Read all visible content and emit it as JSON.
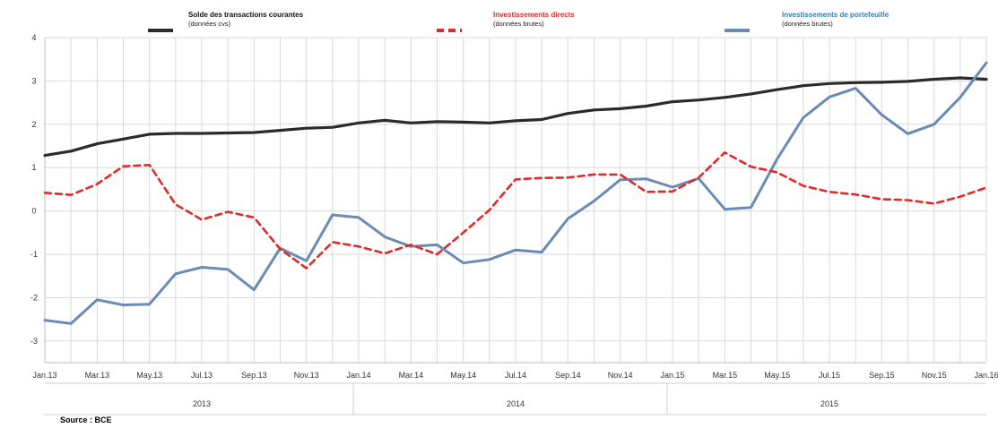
{
  "chart_data": {
    "type": "line",
    "source": "Source : BCE",
    "x": [
      "Jan.13",
      "Feb.13",
      "Mar.13",
      "Apr.13",
      "May.13",
      "Jun.13",
      "Jul.13",
      "Aug.13",
      "Sep.13",
      "Oct.13",
      "Nov.13",
      "Dec.13",
      "Jan.14",
      "Feb.14",
      "Mar.14",
      "Apr.14",
      "May.14",
      "Jun.14",
      "Jul.14",
      "Aug.14",
      "Sep.14",
      "Oct.14",
      "Nov.14",
      "Dec.14",
      "Jan.15",
      "Feb.15",
      "Mar.15",
      "Apr.15",
      "May.15",
      "Jun.15",
      "Jul.15",
      "Aug.15",
      "Sep.15",
      "Oct.15",
      "Nov.15",
      "Dec.15",
      "Jan.16"
    ],
    "tick_labels": [
      "Jan.13",
      "Mar.13",
      "May.13",
      "Jul.13",
      "Sep.13",
      "Nov.13",
      "Jan.14",
      "Mar.14",
      "May.14",
      "Jul.14",
      "Sep.14",
      "Nov.14",
      "Jan.15",
      "Mar.15",
      "May.15",
      "Jul.15",
      "Sep.15",
      "Nov.15",
      "Jan.16"
    ],
    "years": [
      "2013",
      "2014",
      "2015"
    ],
    "ylim": [
      -3.5,
      4
    ],
    "yticks": [
      -3,
      -2,
      -1,
      0,
      1,
      2,
      3,
      4
    ],
    "series": [
      {
        "name": "Solde des transactions courantes",
        "note": "(données cvs)",
        "color": "#2b2b2b",
        "style": "solid",
        "values": [
          1.28,
          1.38,
          1.55,
          1.66,
          1.77,
          1.79,
          1.79,
          1.8,
          1.81,
          1.86,
          1.91,
          1.93,
          2.03,
          2.09,
          2.03,
          2.06,
          2.05,
          2.03,
          2.08,
          2.11,
          2.25,
          2.33,
          2.36,
          2.42,
          2.52,
          2.56,
          2.62,
          2.7,
          2.8,
          2.89,
          2.94,
          2.96,
          2.97,
          2.99,
          3.04,
          3.07,
          3.04
        ]
      },
      {
        "name": "Investissements directs",
        "note": "(données brutes)",
        "color": "#e02a2a",
        "style": "dashed",
        "values": [
          0.42,
          0.37,
          0.62,
          1.03,
          1.06,
          0.15,
          -0.2,
          -0.02,
          -0.15,
          -0.88,
          -1.32,
          -0.72,
          -0.82,
          -0.98,
          -0.78,
          -1.0,
          -0.5,
          0.02,
          0.73,
          0.76,
          0.77,
          0.84,
          0.84,
          0.44,
          0.45,
          0.77,
          1.35,
          1.02,
          0.89,
          0.58,
          0.44,
          0.38,
          0.27,
          0.25,
          0.17,
          0.33,
          0.54
        ]
      },
      {
        "name": "Investissements de portefeuille",
        "note": "(données brutes)",
        "color": "#6a8bb5",
        "style": "solid",
        "values": [
          -2.52,
          -2.6,
          -2.05,
          -2.17,
          -2.15,
          -1.45,
          -1.3,
          -1.35,
          -1.82,
          -0.86,
          -1.15,
          -0.09,
          -0.15,
          -0.6,
          -0.82,
          -0.78,
          -1.2,
          -1.12,
          -0.9,
          -0.95,
          -0.18,
          0.23,
          0.72,
          0.74,
          0.55,
          0.75,
          0.04,
          0.08,
          1.2,
          2.15,
          2.63,
          2.83,
          2.22,
          1.78,
          2.0,
          2.62,
          3.42
        ]
      }
    ]
  },
  "footer": {
    "source": "Source : BCE"
  }
}
